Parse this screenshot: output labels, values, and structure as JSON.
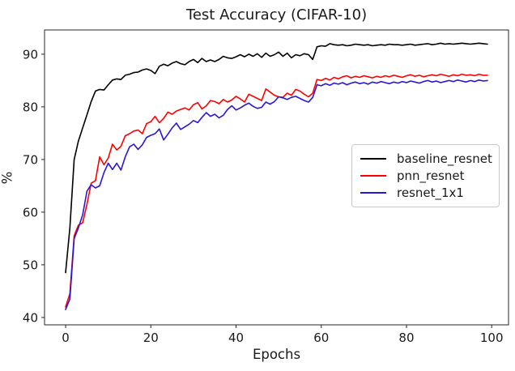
{
  "chart_data": {
    "type": "line",
    "title": "Test Accuracy (CIFAR-10)",
    "xlabel": "Epochs",
    "ylabel": "%",
    "x_ticks": [
      0,
      20,
      40,
      60,
      80,
      100
    ],
    "y_ticks": [
      40,
      50,
      60,
      70,
      80,
      90
    ],
    "xlim": [
      -4.95,
      103.95
    ],
    "ylim": [
      38.6,
      94.6
    ],
    "grid": false,
    "legend_position": "center-right",
    "axis_color": "#262626",
    "x": [
      0,
      1,
      2,
      3,
      4,
      5,
      6,
      7,
      8,
      9,
      10,
      11,
      12,
      13,
      14,
      15,
      16,
      17,
      18,
      19,
      20,
      21,
      22,
      23,
      24,
      25,
      26,
      27,
      28,
      29,
      30,
      31,
      32,
      33,
      34,
      35,
      36,
      37,
      38,
      39,
      40,
      41,
      42,
      43,
      44,
      45,
      46,
      47,
      48,
      49,
      50,
      51,
      52,
      53,
      54,
      55,
      56,
      57,
      58,
      59,
      60,
      61,
      62,
      63,
      64,
      65,
      66,
      67,
      68,
      69,
      70,
      71,
      72,
      73,
      74,
      75,
      76,
      77,
      78,
      79,
      80,
      81,
      82,
      83,
      84,
      85,
      86,
      87,
      88,
      89,
      90,
      91,
      92,
      93,
      94,
      95,
      96,
      97,
      98,
      99
    ],
    "series": [
      {
        "name": "baseline_resnet",
        "color": "#000000",
        "values": [
          48.5,
          57.0,
          70.0,
          73.5,
          76.0,
          78.5,
          81.0,
          83.0,
          83.3,
          83.2,
          84.2,
          85.1,
          85.3,
          85.2,
          86.0,
          86.2,
          86.5,
          86.6,
          87.0,
          87.2,
          86.9,
          86.3,
          87.7,
          88.1,
          87.8,
          88.3,
          88.6,
          88.2,
          88.0,
          88.6,
          89.0,
          88.4,
          89.2,
          88.6,
          88.9,
          88.6,
          89.0,
          89.6,
          89.3,
          89.2,
          89.5,
          89.9,
          89.5,
          90.0,
          89.6,
          90.1,
          89.4,
          90.2,
          89.6,
          89.9,
          90.4,
          89.6,
          90.2,
          89.3,
          89.9,
          89.7,
          90.1,
          89.9,
          89.0,
          91.4,
          91.6,
          91.5,
          92.0,
          91.8,
          91.7,
          91.8,
          91.6,
          91.7,
          91.9,
          91.8,
          91.7,
          91.8,
          91.6,
          91.7,
          91.8,
          91.7,
          91.9,
          91.8,
          91.8,
          91.7,
          91.8,
          91.9,
          91.7,
          91.8,
          91.9,
          92.0,
          91.8,
          91.9,
          92.1,
          91.9,
          92.0,
          91.9,
          92.0,
          92.1,
          92.0,
          91.9,
          92.0,
          92.1,
          92.0,
          91.9
        ]
      },
      {
        "name": "pnn_resnet",
        "color": "#ff0000",
        "values": [
          42.0,
          44.5,
          55.5,
          57.5,
          58.0,
          61.5,
          65.5,
          66.0,
          70.5,
          69.0,
          70.3,
          72.9,
          71.8,
          72.5,
          74.5,
          74.9,
          75.4,
          75.6,
          74.9,
          76.8,
          77.2,
          78.2,
          77.0,
          77.8,
          79.0,
          78.6,
          79.2,
          79.5,
          79.8,
          79.4,
          80.4,
          80.8,
          79.6,
          80.2,
          81.2,
          81.0,
          80.6,
          81.4,
          80.9,
          81.3,
          82.0,
          81.5,
          80.9,
          82.4,
          82.0,
          81.6,
          81.2,
          83.4,
          82.8,
          82.2,
          81.9,
          81.8,
          82.6,
          82.2,
          83.3,
          83.0,
          82.4,
          81.9,
          82.6,
          85.2,
          85.0,
          85.4,
          85.1,
          85.6,
          85.3,
          85.7,
          85.9,
          85.5,
          85.8,
          85.6,
          85.9,
          85.7,
          85.5,
          85.8,
          85.6,
          85.9,
          85.7,
          86.0,
          85.8,
          85.6,
          85.9,
          86.1,
          85.8,
          86.0,
          85.7,
          85.9,
          86.1,
          85.9,
          86.2,
          86.0,
          85.8,
          86.1,
          85.9,
          86.2,
          86.0,
          86.1,
          85.9,
          86.2,
          86.0,
          86.0
        ]
      },
      {
        "name": "resnet_1x1",
        "color": "#2a16d8",
        "values": [
          41.5,
          43.5,
          55.0,
          57.0,
          59.5,
          64.0,
          65.2,
          64.6,
          65.0,
          67.5,
          69.3,
          68.1,
          69.3,
          68.0,
          70.5,
          72.4,
          72.9,
          71.9,
          72.8,
          74.2,
          74.6,
          74.9,
          75.8,
          73.7,
          74.8,
          76.0,
          76.9,
          75.7,
          76.2,
          76.7,
          77.4,
          77.0,
          78.0,
          78.9,
          78.2,
          78.6,
          77.9,
          78.4,
          79.5,
          80.2,
          79.4,
          79.8,
          80.3,
          80.7,
          80.1,
          79.7,
          79.9,
          80.9,
          80.5,
          81.0,
          81.9,
          81.7,
          81.4,
          81.8,
          82.0,
          81.6,
          81.2,
          80.9,
          81.8,
          84.2,
          84.0,
          84.4,
          84.1,
          84.5,
          84.3,
          84.6,
          84.2,
          84.5,
          84.7,
          84.4,
          84.6,
          84.3,
          84.7,
          84.5,
          84.8,
          84.6,
          84.4,
          84.7,
          84.5,
          84.8,
          84.6,
          84.9,
          84.7,
          84.5,
          84.8,
          85.0,
          84.7,
          84.9,
          84.6,
          84.8,
          85.0,
          84.8,
          85.1,
          84.9,
          84.7,
          85.0,
          84.8,
          85.1,
          84.9,
          85.0
        ]
      }
    ]
  }
}
